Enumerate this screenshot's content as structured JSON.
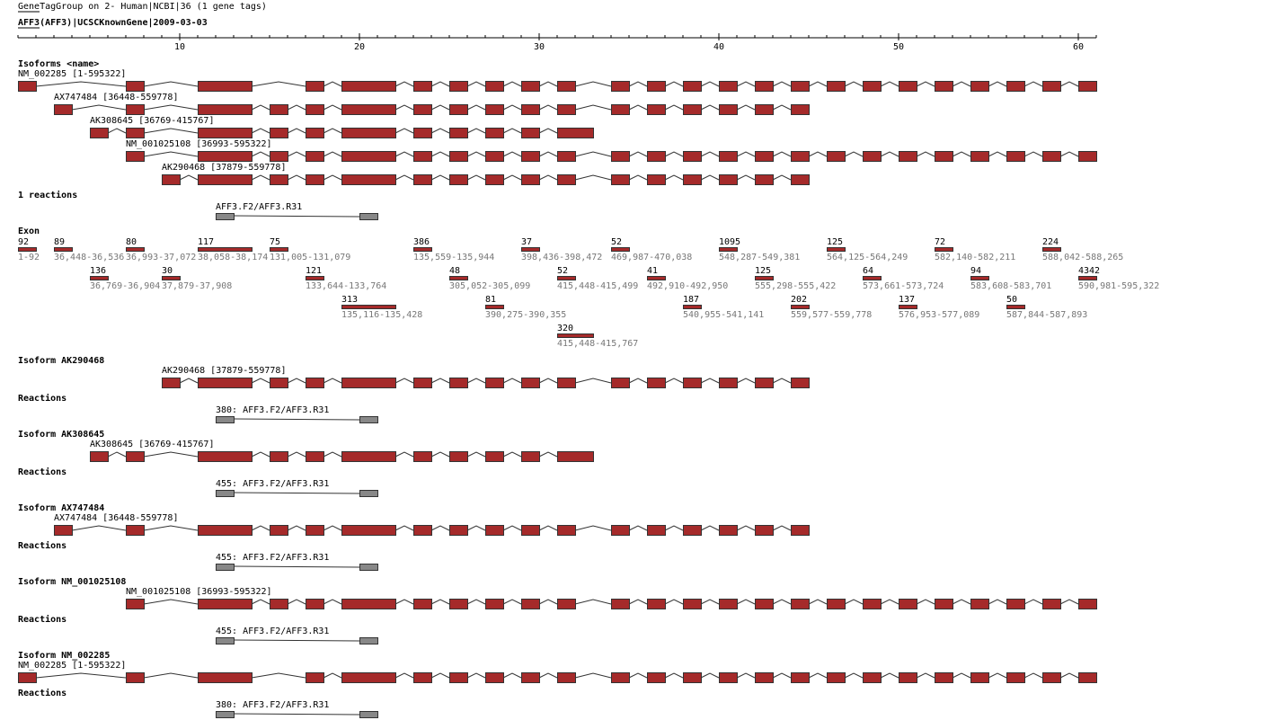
{
  "header": {
    "title": "GeneTagGroup on 2- Human|NCBI|36 (1 gene tags)",
    "gene": "AFF3(AFF3)|UCSCKnownGene|2009-03-03"
  },
  "ruler": {
    "ticks": [
      10,
      20,
      30,
      40,
      50,
      60
    ]
  },
  "isoforms": {
    "heading": "Isoforms <name>",
    "items": [
      {
        "label": "NM_002285 [1-595322]"
      },
      {
        "label": "AX747484 [36448-559778]"
      },
      {
        "label": "AK308645 [36769-415767]"
      },
      {
        "label": "NM_001025108 [36993-595322]"
      },
      {
        "label": "AK290468 [37879-559778]"
      }
    ]
  },
  "reactions": {
    "heading": "1 reactions",
    "items": [
      {
        "label": "AFF3.F2/AFF3.R31"
      }
    ]
  },
  "exons": {
    "heading": "Exon",
    "items": [
      {
        "length": 92,
        "range": "1-92"
      },
      {
        "length": 89,
        "range": "36,448-36,536"
      },
      {
        "length": 136,
        "range": "36,769-36,904"
      },
      {
        "length": 80,
        "range": "36,993-37,072"
      },
      {
        "length": 30,
        "range": "37,879-37,908"
      },
      {
        "length": 117,
        "range": "38,058-38,174"
      },
      {
        "length": 75,
        "range": "131,005-131,079"
      },
      {
        "length": 121,
        "range": "133,644-133,764"
      },
      {
        "length": 313,
        "range": "135,116-135,428"
      },
      {
        "length": 386,
        "range": "135,559-135,944"
      },
      {
        "length": 48,
        "range": "305,052-305,099"
      },
      {
        "length": 81,
        "range": "390,275-390,355"
      },
      {
        "length": 37,
        "range": "398,436-398,472"
      },
      {
        "length": 52,
        "range": "415,448-415,499"
      },
      {
        "length": 320,
        "range": "415,448-415,767"
      },
      {
        "length": 52,
        "range": "469,987-470,038"
      },
      {
        "length": 41,
        "range": "492,910-492,950"
      },
      {
        "length": 187,
        "range": "540,955-541,141"
      },
      {
        "length": 1095,
        "range": "548,287-549,381"
      },
      {
        "length": 125,
        "range": "555,298-555,422"
      },
      {
        "length": 202,
        "range": "559,577-559,778"
      },
      {
        "length": 125,
        "range": "564,125-564,249"
      },
      {
        "length": 64,
        "range": "573,661-573,724"
      },
      {
        "length": 137,
        "range": "576,953-577,089"
      },
      {
        "length": 72,
        "range": "582,140-582,211"
      },
      {
        "length": 94,
        "range": "583,608-583,701"
      },
      {
        "length": 50,
        "range": "587,844-587,893"
      },
      {
        "length": 224,
        "range": "588,042-588,265"
      },
      {
        "length": 4342,
        "range": "590,981-595,322"
      }
    ]
  },
  "sections": [
    {
      "title": "Isoform AK290468",
      "isoform": "AK290468 [37879-559778]",
      "reactions_heading": "Reactions",
      "reaction": "380: AFF3.F2/AFF3.R31"
    },
    {
      "title": "Isoform AK308645",
      "isoform": "AK308645 [36769-415767]",
      "reactions_heading": "Reactions",
      "reaction": "455: AFF3.F2/AFF3.R31"
    },
    {
      "title": "Isoform AX747484",
      "isoform": "AX747484 [36448-559778]",
      "reactions_heading": "Reactions",
      "reaction": "455: AFF3.F2/AFF3.R31"
    },
    {
      "title": "Isoform NM_001025108",
      "isoform": "NM_001025108 [36993-595322]",
      "reactions_heading": "Reactions",
      "reaction": "455: AFF3.F2/AFF3.R31"
    },
    {
      "title": "Isoform NM_002285",
      "isoform": "NM_002285 [1-595322]",
      "reactions_heading": "Reactions",
      "reaction": "380: AFF3.F2/AFF3.R31"
    }
  ]
}
